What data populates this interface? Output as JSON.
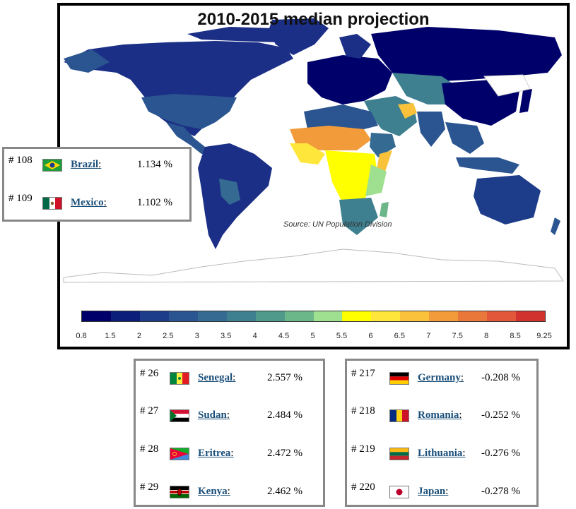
{
  "map": {
    "title": "2010-2015 median projection",
    "source": "Source: UN Population Division",
    "legend": {
      "ticks": [
        "0.8",
        "1.5",
        "2",
        "2.5",
        "3",
        "3.5",
        "4",
        "4.5",
        "5",
        "5.5",
        "6",
        "6.5",
        "7",
        "7.5",
        "8",
        "8.5",
        "9.25"
      ],
      "colors": [
        "#00006b",
        "#0b1f7a",
        "#1d3c8a",
        "#2b5590",
        "#356b92",
        "#3e8090",
        "#4f9a8a",
        "#6cb789",
        "#9fdf90",
        "#ffff00",
        "#ffe63a",
        "#f9c23a",
        "#f29b3a",
        "#ea773a",
        "#e2573a",
        "#d1322e"
      ]
    }
  },
  "box_left": {
    "rows": [
      {
        "rank": "# 108",
        "country": "Brazil",
        "value": "1.134 %",
        "flag": "brazil-flag-icon"
      },
      {
        "rank": "# 109",
        "country": "Mexico",
        "value": "1.102 %",
        "flag": "mexico-flag-icon"
      }
    ]
  },
  "box_middle": {
    "rows": [
      {
        "rank": "# 26",
        "country": "Senegal",
        "value": "2.557 %",
        "flag": "senegal-flag-icon"
      },
      {
        "rank": "# 27",
        "country": "Sudan",
        "value": "2.484 %",
        "flag": "sudan-flag-icon"
      },
      {
        "rank": "# 28",
        "country": "Eritrea",
        "value": "2.472 %",
        "flag": "eritrea-flag-icon"
      },
      {
        "rank": "# 29",
        "country": "Kenya",
        "value": "2.462 %",
        "flag": "kenya-flag-icon"
      }
    ]
  },
  "box_right": {
    "rows": [
      {
        "rank": "# 217",
        "country": "Germany",
        "value": "-0.208 %",
        "flag": "germany-flag-icon"
      },
      {
        "rank": "# 218",
        "country": "Romania",
        "value": "-0.252 %",
        "flag": "romania-flag-icon"
      },
      {
        "rank": "# 219",
        "country": "Lithuania",
        "value": "-0.276 %",
        "flag": "lithuania-flag-icon"
      },
      {
        "rank": "# 220",
        "country": "Japan",
        "value": "-0.278 %",
        "flag": "japan-flag-icon"
      }
    ]
  }
}
